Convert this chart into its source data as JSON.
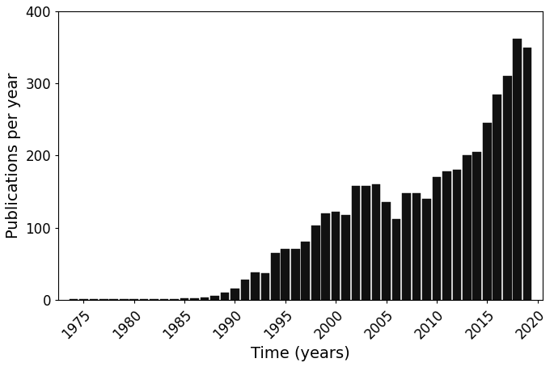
{
  "years": [
    1974,
    1975,
    1976,
    1977,
    1978,
    1979,
    1980,
    1981,
    1982,
    1983,
    1984,
    1985,
    1986,
    1987,
    1988,
    1989,
    1990,
    1991,
    1992,
    1993,
    1994,
    1995,
    1996,
    1997,
    1998,
    1999,
    2000,
    2001,
    2002,
    2003,
    2004,
    2005,
    2006,
    2007,
    2008,
    2009,
    2010,
    2011,
    2012,
    2013,
    2014,
    2015,
    2016,
    2017,
    2018,
    2019
  ],
  "values": [
    1,
    1,
    1,
    1,
    1,
    1,
    1,
    1,
    1,
    1,
    1,
    2,
    2,
    3,
    5,
    10,
    15,
    28,
    38,
    37,
    65,
    70,
    70,
    80,
    103,
    120,
    122,
    118,
    158,
    158,
    160,
    135,
    112,
    148,
    148,
    140,
    170,
    178,
    180,
    200,
    205,
    245,
    285,
    310,
    362,
    350
  ],
  "xlabel": "Time (years)",
  "ylabel": "Publications per year",
  "xlim": [
    1972.5,
    2020.5
  ],
  "ylim": [
    0,
    400
  ],
  "yticks": [
    0,
    100,
    200,
    300,
    400
  ],
  "xticks": [
    1975,
    1980,
    1985,
    1990,
    1995,
    2000,
    2005,
    2010,
    2015,
    2020
  ],
  "bar_color": "#111111",
  "bar_edgecolor": "#111111",
  "background_color": "#ffffff",
  "xlabel_fontsize": 14,
  "ylabel_fontsize": 14,
  "tick_fontsize": 12
}
